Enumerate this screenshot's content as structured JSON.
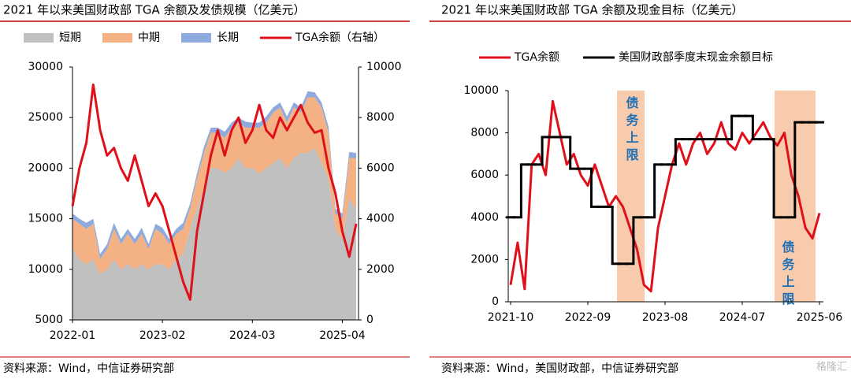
{
  "chart_data": [
    {
      "type": "combo",
      "title": "2021 年以来美国财政部 TGA 余额及发债规模（亿美元）",
      "source": "资料来源：Wind，中信证券研究部",
      "categories": [
        "2022-01",
        null,
        null,
        null,
        null,
        null,
        null,
        null,
        null,
        null,
        null,
        null,
        null,
        "2023-02",
        null,
        null,
        null,
        null,
        null,
        null,
        null,
        null,
        null,
        null,
        null,
        null,
        "2024-03",
        null,
        null,
        null,
        null,
        null,
        null,
        null,
        null,
        null,
        null,
        null,
        null,
        "2025-04",
        null,
        null
      ],
      "ylim": [
        5000,
        30000
      ],
      "yticks": [
        5000,
        10000,
        15000,
        20000,
        25000,
        30000
      ],
      "y2lim": [
        0,
        10000
      ],
      "y2ticks": [
        0,
        2000,
        4000,
        6000,
        8000,
        10000
      ],
      "series": [
        {
          "name": "短期",
          "type": "area",
          "color": "#c0c0c0",
          "values": [
            12000,
            11000,
            10500,
            11000,
            9500,
            10000,
            11000,
            10000,
            10500,
            10000,
            10500,
            10000,
            10500,
            10500,
            10000,
            11000,
            11500,
            14000,
            16000,
            18000,
            20000,
            20000,
            19500,
            20000,
            21000,
            20000,
            20000,
            19500,
            20000,
            20500,
            21000,
            20000,
            21000,
            21500,
            21500,
            22000,
            20500,
            19000,
            14000,
            13000,
            17000,
            16000
          ]
        },
        {
          "name": "中期",
          "type": "area",
          "color": "#f4b183",
          "values": [
            3000,
            3500,
            3500,
            3500,
            1500,
            2000,
            3000,
            2500,
            3000,
            2500,
            3000,
            2000,
            3500,
            3000,
            2500,
            2500,
            2500,
            2000,
            3000,
            3500,
            3500,
            3500,
            3500,
            4000,
            3500,
            4000,
            4000,
            4500,
            4500,
            5000,
            5000,
            4500,
            5000,
            4000,
            5500,
            5000,
            5500,
            4500,
            1500,
            2000,
            4000,
            5000
          ]
        },
        {
          "name": "长期",
          "type": "area",
          "color": "#8faadc",
          "values": [
            500,
            500,
            600,
            500,
            500,
            500,
            600,
            500,
            500,
            500,
            600,
            500,
            500,
            600,
            500,
            500,
            600,
            500,
            500,
            600,
            500,
            500,
            600,
            500,
            500,
            600,
            500,
            500,
            600,
            500,
            500,
            600,
            500,
            500,
            600,
            500,
            500,
            600,
            500,
            500,
            600,
            500
          ]
        },
        {
          "name": "TGA余额（右轴）",
          "type": "line",
          "axis": "y2",
          "color": "#e0101a",
          "values": [
            4500,
            6000,
            7000,
            9300,
            7500,
            6500,
            6800,
            6000,
            5500,
            6500,
            5500,
            4500,
            5000,
            4500,
            3500,
            2500,
            1500,
            800,
            3500,
            5000,
            6500,
            7500,
            6500,
            7500,
            8000,
            7000,
            7500,
            8500,
            7500,
            7200,
            8000,
            7500,
            8000,
            8500,
            7800,
            7400,
            7500,
            6000,
            5000,
            3500,
            2500,
            3800
          ]
        }
      ]
    },
    {
      "type": "line",
      "title": "2021 年以来美国财政部 TGA 余额及现金目标（亿美元）",
      "source": "资料来源：Wind，美国财政部，中信证券研究部",
      "annotations": [
        "债务上限",
        "债务上限"
      ],
      "categories": [
        "2021-10",
        null,
        null,
        null,
        null,
        null,
        null,
        null,
        null,
        null,
        null,
        "2022-09",
        null,
        null,
        null,
        null,
        null,
        null,
        null,
        null,
        null,
        null,
        "2023-08",
        null,
        null,
        null,
        null,
        null,
        null,
        null,
        null,
        null,
        null,
        "2024-07",
        null,
        null,
        null,
        null,
        null,
        null,
        null,
        null,
        null,
        null,
        "2025-06"
      ],
      "ylim": [
        0,
        10000
      ],
      "yticks": [
        0,
        2000,
        4000,
        6000,
        8000,
        10000
      ],
      "series": [
        {
          "name": "TGA余额",
          "type": "line",
          "color": "#e0101a",
          "values": [
            800,
            2800,
            600,
            6500,
            7000,
            6000,
            9500,
            8000,
            6500,
            7000,
            6000,
            5500,
            6500,
            5500,
            4500,
            5000,
            4500,
            3500,
            2500,
            800,
            500,
            3500,
            5000,
            6500,
            7500,
            6500,
            7500,
            8000,
            7000,
            7500,
            8500,
            7500,
            7200,
            8000,
            7500,
            8000,
            8500,
            7800,
            7400,
            8000,
            6000,
            5000,
            3500,
            3000,
            4200
          ]
        },
        {
          "name": "美国财政部季度末现金余额目标",
          "type": "step",
          "color": "#000000",
          "values": [
            4000,
            4000,
            6500,
            6500,
            6500,
            7800,
            7800,
            7800,
            7800,
            6300,
            6300,
            6300,
            4500,
            4500,
            4500,
            1800,
            1800,
            1800,
            4000,
            4000,
            4000,
            6500,
            6500,
            6500,
            7700,
            7700,
            7700,
            7700,
            7700,
            7700,
            7700,
            7700,
            8800,
            8800,
            8800,
            7700,
            7700,
            7700,
            4000,
            4000,
            4000,
            8500,
            8500,
            8500,
            8500
          ]
        }
      ]
    }
  ],
  "watermark": "格隆汇"
}
